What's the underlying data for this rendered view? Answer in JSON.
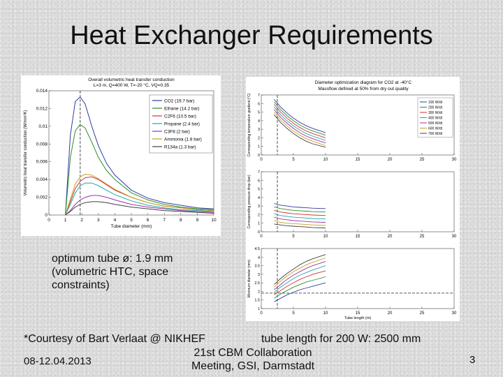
{
  "slide": {
    "title": "Heat Exchanger Requirements",
    "note_line1": "optimum tube ø: 1.9 mm",
    "note_line2": "(volumetric HTC, space",
    "note_line3": "constraints)",
    "courtesy": "*Courtesy of Bart Verlaat @ NIKHEF",
    "tube_length": "tube length for 200 W: 2500 mm",
    "date": "08-12.04.2013",
    "meeting_line1": "21st CBM Collaboration",
    "meeting_line2": "Meeting, GSI, Darmstadt",
    "page_number": "3"
  },
  "chart_data": [
    {
      "type": "line",
      "title": "Overall volumetric heat transfer conduction",
      "subtitle": "L=3 m, Q=400 W, T=-20 °C, VQ=0.35",
      "xlabel": "Tube diameter (mm)",
      "ylabel": "Volumetric heat transfer conduction (W/mm³K)",
      "xlim": [
        0,
        10
      ],
      "ylim": [
        0,
        0.014
      ],
      "xticks": [
        "0",
        "1",
        "2",
        "3",
        "4",
        "5",
        "6",
        "7",
        "8",
        "9",
        "10"
      ],
      "yticks": [
        "0",
        "0.002",
        "0.004",
        "0.006",
        "0.008",
        "0.01",
        "0.012",
        "0.014"
      ],
      "grid": false,
      "legend_position": "top-right",
      "marker_x": 1.9,
      "x": [
        1.0,
        1.3,
        1.6,
        1.9,
        2.2,
        2.6,
        3.0,
        3.5,
        4.0,
        5.0,
        6.0,
        7.0,
        8.0,
        9.0,
        10.0
      ],
      "series": [
        {
          "name": "CO2 (19.7 bar)",
          "color": "#2e3c9e",
          "values": [
            0.0,
            0.009,
            0.0128,
            0.0133,
            0.0125,
            0.01,
            0.0078,
            0.0058,
            0.0045,
            0.0028,
            0.0019,
            0.0014,
            0.0011,
            0.0008,
            0.0007
          ]
        },
        {
          "name": "Ethane (14.2 bar)",
          "color": "#2f8a2f",
          "values": [
            0.0,
            0.0065,
            0.0095,
            0.0102,
            0.0098,
            0.0082,
            0.0065,
            0.005,
            0.004,
            0.0025,
            0.0017,
            0.0012,
            0.0009,
            0.0007,
            0.0006
          ]
        },
        {
          "name": "C2F6 (10.5 bar)",
          "color": "#d03030",
          "values": [
            0.0,
            0.0015,
            0.003,
            0.0038,
            0.0042,
            0.0043,
            0.004,
            0.0034,
            0.0028,
            0.002,
            0.0014,
            0.001,
            0.0008,
            0.0006,
            0.0005
          ]
        },
        {
          "name": "Propane (2.4 bar)",
          "color": "#20a8a8",
          "values": [
            0.0,
            0.0012,
            0.0025,
            0.0033,
            0.0036,
            0.0036,
            0.0033,
            0.0028,
            0.0023,
            0.0016,
            0.0011,
            0.0008,
            0.0006,
            0.0005,
            0.0004
          ]
        },
        {
          "name": "C3F8 (2 bar)",
          "color": "#a030a0",
          "values": [
            0.0,
            0.0005,
            0.0012,
            0.0017,
            0.002,
            0.0022,
            0.0022,
            0.002,
            0.0017,
            0.0012,
            0.0009,
            0.0007,
            0.0005,
            0.0004,
            0.0003
          ]
        },
        {
          "name": "Ammonia (1.8 bar)",
          "color": "#c8a020",
          "values": [
            0.0,
            0.0018,
            0.0035,
            0.0043,
            0.0046,
            0.0045,
            0.0041,
            0.0035,
            0.0029,
            0.002,
            0.0014,
            0.001,
            0.0008,
            0.0006,
            0.0005
          ]
        },
        {
          "name": "R134a (1.3 bar)",
          "color": "#404040",
          "values": [
            0.0,
            0.0004,
            0.0009,
            0.0012,
            0.0014,
            0.0015,
            0.0015,
            0.0014,
            0.0012,
            0.0009,
            0.0007,
            0.0005,
            0.0004,
            0.0003,
            0.0002
          ]
        }
      ]
    },
    {
      "type": "line",
      "title": "Diameter optimization diagram for CO2 at -40°C",
      "subtitle": "Massflow defined at 50% from dry out quality",
      "legend_position": "top-right",
      "xlabel": "Tube length (m)",
      "grid": false,
      "series_names": [
        "100 W/dt",
        "200 W/dt",
        "300 W/dt",
        "400 W/dt",
        "500 W/dt",
        "600 W/dt",
        "700 W/dt"
      ],
      "series_colors": [
        "#2e3c9e",
        "#2f8a2f",
        "#d03030",
        "#20a8a8",
        "#a030a0",
        "#c8a020",
        "#404040"
      ],
      "x": [
        2,
        3,
        4,
        5,
        6,
        7,
        8,
        10
      ],
      "marker_x": 2.5,
      "subplots": [
        {
          "ylabel": "Corresponding temperature gradient (°C)",
          "xlim": [
            0,
            30
          ],
          "ylim": [
            0,
            7
          ],
          "xticks": [
            "0",
            "5",
            "10",
            "15",
            "20",
            "25",
            "30"
          ],
          "yticks": [
            "0",
            "1",
            "2",
            "3",
            "4",
            "5",
            "6",
            "7"
          ],
          "series": [
            [
              6.5,
              5.6,
              4.9,
              4.3,
              3.8,
              3.4,
              3.1,
              2.6
            ],
            [
              6.2,
              5.3,
              4.6,
              4.0,
              3.5,
              3.1,
              2.8,
              2.3
            ],
            [
              5.9,
              5.0,
              4.3,
              3.7,
              3.2,
              2.8,
              2.5,
              2.0
            ],
            [
              5.6,
              4.7,
              4.0,
              3.4,
              2.9,
              2.5,
              2.2,
              1.7
            ],
            [
              5.3,
              4.4,
              3.7,
              3.1,
              2.6,
              2.2,
              1.9,
              1.4
            ],
            [
              5.0,
              4.1,
              3.4,
              2.8,
              2.3,
              1.9,
              1.6,
              1.1
            ],
            [
              4.7,
              3.8,
              3.1,
              2.5,
              2.0,
              1.6,
              1.3,
              0.9
            ]
          ]
        },
        {
          "ylabel": "Corresponding pressure drop (bar)",
          "xlim": [
            0,
            30
          ],
          "ylim": [
            0,
            7
          ],
          "xticks": [
            "0",
            "5",
            "10",
            "15",
            "20",
            "25",
            "30"
          ],
          "yticks": [
            "0",
            "1",
            "2",
            "3",
            "4",
            "5",
            "6",
            "7"
          ],
          "series": [
            [
              3.3,
              3.1,
              3.0,
              2.9,
              2.85,
              2.8,
              2.75,
              2.7
            ],
            [
              2.9,
              2.7,
              2.6,
              2.5,
              2.45,
              2.4,
              2.35,
              2.3
            ],
            [
              2.5,
              2.3,
              2.2,
              2.1,
              2.05,
              2.0,
              1.95,
              1.9
            ],
            [
              2.1,
              1.9,
              1.8,
              1.7,
              1.65,
              1.6,
              1.55,
              1.5
            ],
            [
              1.7,
              1.5,
              1.4,
              1.3,
              1.25,
              1.2,
              1.15,
              1.1
            ],
            [
              1.3,
              1.1,
              1.0,
              0.95,
              0.9,
              0.85,
              0.8,
              0.75
            ],
            [
              0.9,
              0.8,
              0.7,
              0.65,
              0.6,
              0.55,
              0.5,
              0.45
            ]
          ]
        },
        {
          "ylabel": "Minimum diameter (mm)",
          "xlim": [
            0,
            30
          ],
          "ylim": [
            1,
            4.5
          ],
          "xticks": [
            "0",
            "5",
            "10",
            "15",
            "20",
            "25",
            "30"
          ],
          "yticks": [
            "1",
            "1.5",
            "2",
            "2.5",
            "3",
            "3.5",
            "4",
            "4.5"
          ],
          "marker_y": 1.9,
          "series": [
            [
              1.4,
              1.6,
              1.8,
              1.95,
              2.1,
              2.2,
              2.3,
              2.5
            ],
            [
              1.6,
              1.85,
              2.05,
              2.25,
              2.4,
              2.55,
              2.65,
              2.85
            ],
            [
              1.8,
              2.05,
              2.3,
              2.5,
              2.7,
              2.85,
              3.0,
              3.2
            ],
            [
              1.95,
              2.25,
              2.5,
              2.75,
              2.95,
              3.1,
              3.25,
              3.5
            ],
            [
              2.1,
              2.4,
              2.7,
              2.95,
              3.15,
              3.35,
              3.5,
              3.75
            ],
            [
              2.25,
              2.6,
              2.9,
              3.15,
              3.35,
              3.55,
              3.7,
              3.95
            ],
            [
              2.4,
              2.75,
              3.05,
              3.3,
              3.55,
              3.75,
              3.9,
              4.15
            ]
          ]
        }
      ]
    }
  ]
}
